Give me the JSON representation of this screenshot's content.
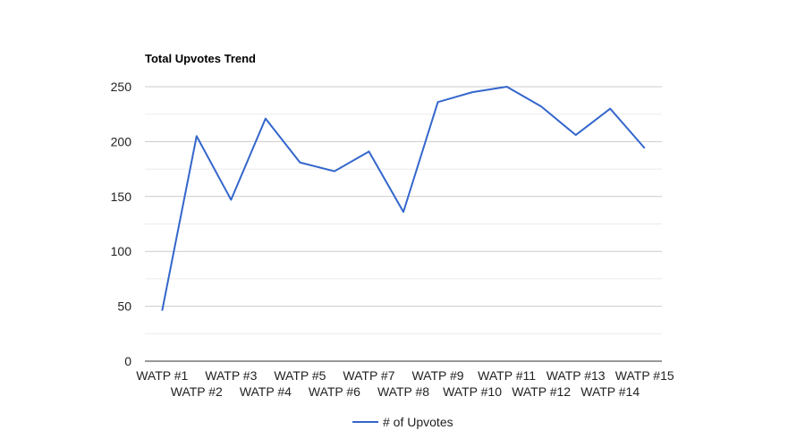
{
  "chart_data": {
    "type": "line",
    "title": "Total Upvotes Trend",
    "xlabel": "",
    "ylabel": "",
    "categories": [
      "WATP #1",
      "WATP #2",
      "WATP #3",
      "WATP #4",
      "WATP #5",
      "WATP #6",
      "WATP #7",
      "WATP #8",
      "WATP #9",
      "WATP #10",
      "WATP #11",
      "WATP #12",
      "WATP #13",
      "WATP #14",
      "WATP #15"
    ],
    "series": [
      {
        "name": "# of Upvotes",
        "color": "#3366cc",
        "values": [
          46,
          205,
          147,
          221,
          181,
          173,
          191,
          136,
          236,
          245,
          250,
          232,
          206,
          230,
          194
        ]
      }
    ],
    "ylim": [
      0,
      250
    ],
    "yticks": [
      0,
      50,
      100,
      150,
      200,
      250
    ],
    "ytick_labels": [
      "0",
      "50",
      "100",
      "150",
      "200",
      "250"
    ],
    "grid": true,
    "minor_grid": true,
    "legend_position": "bottom"
  }
}
